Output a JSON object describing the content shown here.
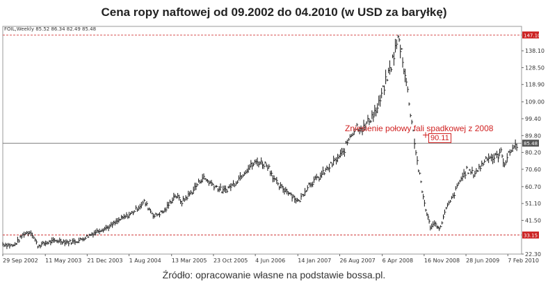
{
  "title": "Cena ropy naftowej od 09.2002 do 04.2010 (w USD za baryłkę)",
  "source": "Źródło: opracowanie własne na podstawie bossa.pl.",
  "chart_data": {
    "type": "ohlc",
    "ohlc_header": "FOIL,Weekly  85.52 86.34 82.49 85.48",
    "annotation_text": "Zniesienie połowy fali spadkowej z 2008",
    "annotation_value": "90.11",
    "y_ticks": [
      "138.10",
      "128.50",
      "118.90",
      "109.00",
      "99.40",
      "89.80",
      "80.20",
      "70.60",
      "60.70",
      "51.10",
      "41.50",
      "22.30"
    ],
    "y_tick_values": [
      138.1,
      128.5,
      118.9,
      109.0,
      99.4,
      89.8,
      80.2,
      70.6,
      60.7,
      51.1,
      41.5,
      22.3
    ],
    "hline_labels": [
      {
        "label": "147.10",
        "value": 147.1,
        "color": "#cc2222"
      },
      {
        "label": "85.48",
        "value": 85.48,
        "color": "#555555"
      },
      {
        "label": "33.15",
        "value": 33.15,
        "color": "#cc2222"
      }
    ],
    "x_ticks": [
      "29 Sep 2002",
      "11 May 2003",
      "21 Dec 2003",
      "1 Aug 2004",
      "13 Mar 2005",
      "23 Oct 2005",
      "4 Jun 2006",
      "14 Jan 2007",
      "26 Aug 2007",
      "6 Apr 2008",
      "16 Nov 2008",
      "28 Jun 2009",
      "7 Feb 2010"
    ],
    "x_tick_values": [
      2002.74,
      2003.36,
      2003.97,
      2004.58,
      2005.2,
      2005.81,
      2006.42,
      2007.04,
      2007.65,
      2008.27,
      2008.88,
      2009.49,
      2010.1
    ],
    "ylim": [
      22.3,
      152
    ],
    "xlim": [
      2002.74,
      2010.3
    ],
    "points": [
      [
        2002.74,
        28
      ],
      [
        2002.9,
        27
      ],
      [
        2003.05,
        34
      ],
      [
        2003.15,
        35
      ],
      [
        2003.25,
        27
      ],
      [
        2003.4,
        29
      ],
      [
        2003.55,
        30
      ],
      [
        2003.7,
        29
      ],
      [
        2003.85,
        30
      ],
      [
        2004.0,
        33
      ],
      [
        2004.15,
        36
      ],
      [
        2004.3,
        38
      ],
      [
        2004.45,
        42
      ],
      [
        2004.6,
        45
      ],
      [
        2004.8,
        52
      ],
      [
        2004.95,
        44
      ],
      [
        2005.1,
        47
      ],
      [
        2005.25,
        56
      ],
      [
        2005.35,
        52
      ],
      [
        2005.5,
        58
      ],
      [
        2005.65,
        66
      ],
      [
        2005.8,
        62
      ],
      [
        2005.95,
        58
      ],
      [
        2006.1,
        62
      ],
      [
        2006.3,
        71
      ],
      [
        2006.45,
        75
      ],
      [
        2006.6,
        73
      ],
      [
        2006.75,
        61
      ],
      [
        2006.9,
        58
      ],
      [
        2007.05,
        52
      ],
      [
        2007.2,
        62
      ],
      [
        2007.35,
        66
      ],
      [
        2007.5,
        72
      ],
      [
        2007.6,
        76
      ],
      [
        2007.7,
        80
      ],
      [
        2007.8,
        90
      ],
      [
        2007.9,
        95
      ],
      [
        2008.0,
        94
      ],
      [
        2008.1,
        100
      ],
      [
        2008.2,
        105
      ],
      [
        2008.3,
        118
      ],
      [
        2008.4,
        130
      ],
      [
        2008.5,
        145
      ],
      [
        2008.55,
        138
      ],
      [
        2008.62,
        120
      ],
      [
        2008.7,
        98
      ],
      [
        2008.78,
        75
      ],
      [
        2008.85,
        58
      ],
      [
        2008.92,
        45
      ],
      [
        2008.97,
        38
      ],
      [
        2009.05,
        40
      ],
      [
        2009.1,
        36
      ],
      [
        2009.2,
        48
      ],
      [
        2009.3,
        55
      ],
      [
        2009.4,
        64
      ],
      [
        2009.5,
        70
      ],
      [
        2009.6,
        68
      ],
      [
        2009.7,
        72
      ],
      [
        2009.8,
        78
      ],
      [
        2009.9,
        77
      ],
      [
        2010.0,
        80
      ],
      [
        2010.05,
        74
      ],
      [
        2010.15,
        82
      ],
      [
        2010.25,
        85.48
      ]
    ]
  }
}
